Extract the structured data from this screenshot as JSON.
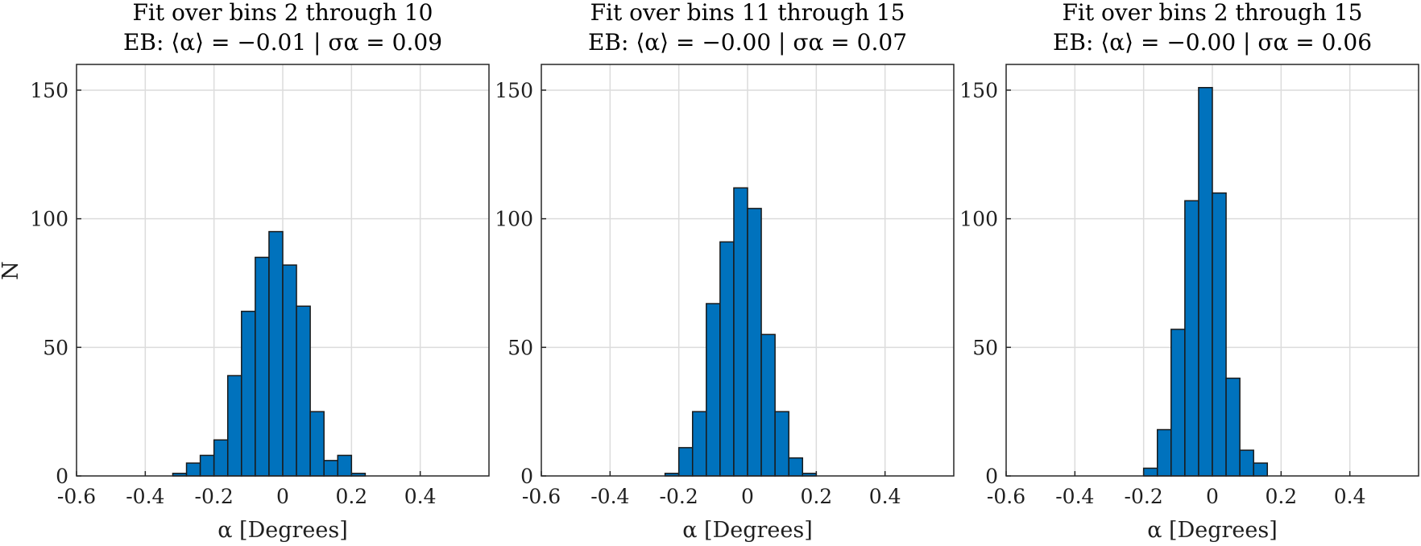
{
  "chart_data": [
    {
      "type": "bar",
      "title": "Fit over bins 2 through 10",
      "subtitle": "EB: ⟨α⟩ = −0.01 | σα = 0.09",
      "xlabel": "α [Degrees]",
      "ylabel": "N",
      "xlim": [
        -0.6,
        0.6
      ],
      "ylim": [
        0,
        160
      ],
      "xticks": [
        "-0.6",
        "-0.4",
        "-0.2",
        "0",
        "0.2",
        "0.4"
      ],
      "yticks": [
        "0",
        "50",
        "100",
        "150"
      ],
      "grid": true,
      "bin_width": 0.04,
      "bin_starts": [
        -0.32,
        -0.28,
        -0.24,
        -0.2,
        -0.16,
        -0.12,
        -0.08,
        -0.04,
        0.0,
        0.04,
        0.08,
        0.12,
        0.16,
        0.2,
        0.24
      ],
      "values": [
        1,
        5,
        8,
        14,
        39,
        64,
        85,
        95,
        82,
        66,
        25,
        6,
        8,
        1,
        0
      ]
    },
    {
      "type": "bar",
      "title": "Fit over bins 11 through 15",
      "subtitle": "EB: ⟨α⟩ = −0.00 | σα = 0.07",
      "xlabel": "α [Degrees]",
      "ylabel": "",
      "xlim": [
        -0.6,
        0.6
      ],
      "ylim": [
        0,
        160
      ],
      "xticks": [
        "-0.6",
        "-0.4",
        "-0.2",
        "0",
        "0.2",
        "0.4"
      ],
      "yticks": [
        "0",
        "50",
        "100",
        "150"
      ],
      "grid": true,
      "bin_width": 0.04,
      "bin_starts": [
        -0.24,
        -0.2,
        -0.16,
        -0.12,
        -0.08,
        -0.04,
        0.0,
        0.04,
        0.08,
        0.12,
        0.16,
        0.2
      ],
      "values": [
        1,
        11,
        25,
        67,
        91,
        112,
        104,
        55,
        25,
        7,
        1,
        0
      ]
    },
    {
      "type": "bar",
      "title": "Fit over bins 2 through 15",
      "subtitle": "EB: ⟨α⟩ = −0.00 | σα = 0.06",
      "xlabel": "α [Degrees]",
      "ylabel": "",
      "xlim": [
        -0.6,
        0.6
      ],
      "ylim": [
        0,
        160
      ],
      "xticks": [
        "-0.6",
        "-0.4",
        "-0.2",
        "0",
        "0.2",
        "0.4"
      ],
      "yticks": [
        "0",
        "50",
        "100",
        "150"
      ],
      "grid": true,
      "bin_width": 0.04,
      "bin_starts": [
        -0.2,
        -0.16,
        -0.12,
        -0.08,
        -0.04,
        0.0,
        0.04,
        0.08,
        0.12,
        0.16
      ],
      "values": [
        3,
        18,
        57,
        107,
        151,
        110,
        38,
        10,
        5,
        0
      ]
    }
  ]
}
